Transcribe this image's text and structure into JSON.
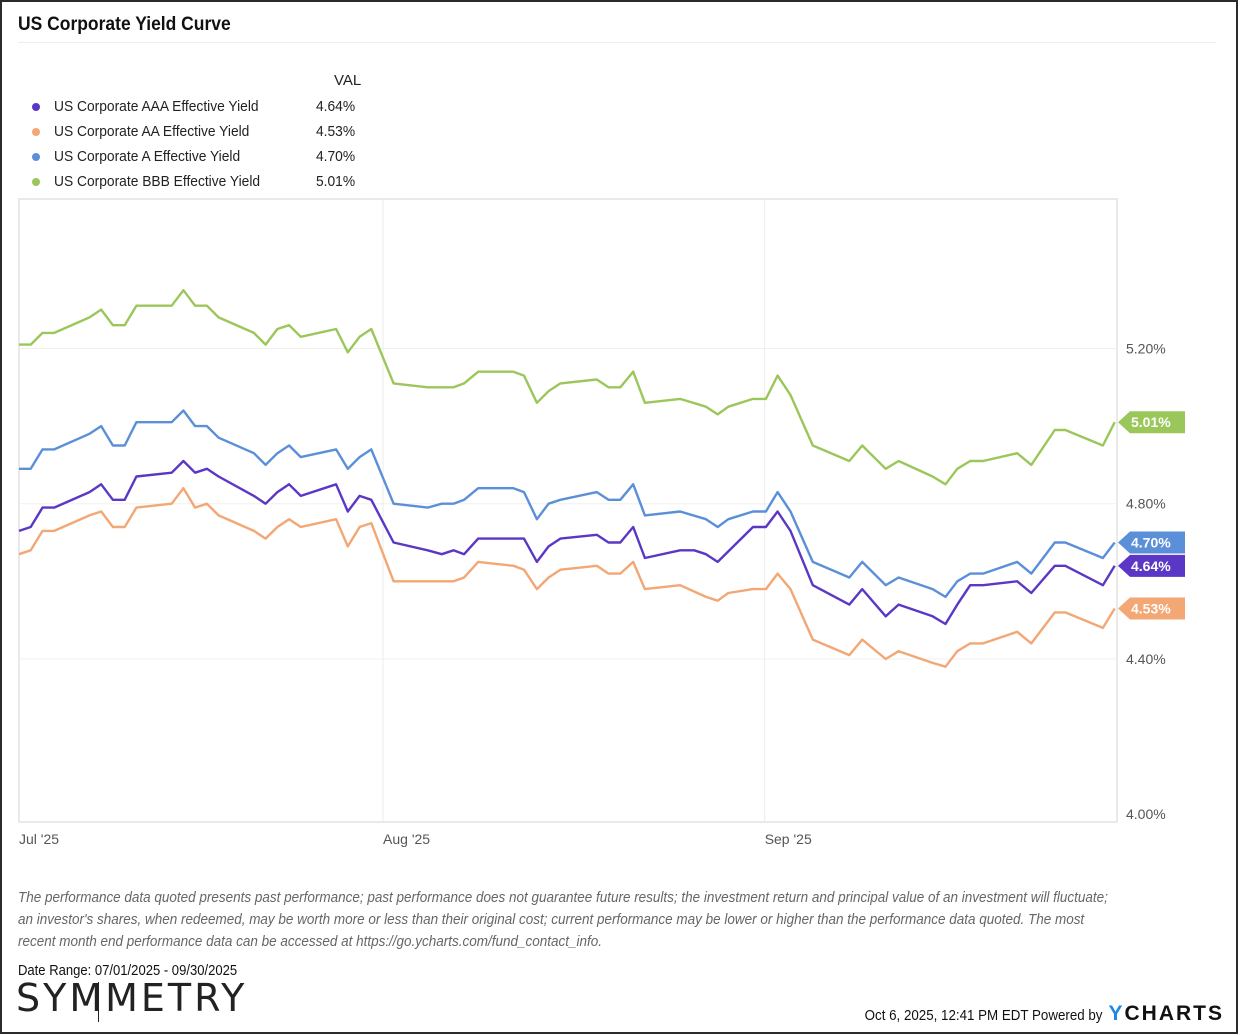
{
  "title": "US Corporate Yield Curve",
  "legend": {
    "value_header": "VAL",
    "items": [
      {
        "label": "US Corporate AAA Effective Yield",
        "value": "4.64%",
        "color": "#5b37c5"
      },
      {
        "label": "US Corporate AA Effective Yield",
        "value": "4.53%",
        "color": "#f2a774"
      },
      {
        "label": "US Corporate A Effective Yield",
        "value": "4.70%",
        "color": "#5b8fd8"
      },
      {
        "label": "US Corporate BBB Effective Yield",
        "value": "5.01%",
        "color": "#9bc75a"
      }
    ]
  },
  "chart_data": {
    "type": "line",
    "title": "US Corporate Yield Curve",
    "xlabel": "",
    "ylabel": "",
    "x_unit": "days since 07/01/2025",
    "xlim": [
      0,
      93.5
    ],
    "ylim": [
      3.98,
      5.585
    ],
    "grid": true,
    "legend_position": "top-left",
    "x_ticks": [
      {
        "label": "Jul '25",
        "x": 0
      },
      {
        "label": "Aug '25",
        "x": 31
      },
      {
        "label": "Sep '25",
        "x": 63.5
      }
    ],
    "y_ticks": [
      {
        "label": "5.20%",
        "y": 5.2
      },
      {
        "label": "4.80%",
        "y": 4.8
      },
      {
        "label": "4.40%",
        "y": 4.4
      },
      {
        "label": "4.00%",
        "y": 4.0
      }
    ],
    "series": [
      {
        "name": "US Corporate BBB Effective Yield",
        "color": "#9bc75a",
        "end_label": "5.01%",
        "points": [
          [
            0,
            5.21
          ],
          [
            1,
            5.21
          ],
          [
            2,
            5.24
          ],
          [
            3,
            5.24
          ],
          [
            6,
            5.28
          ],
          [
            7,
            5.3
          ],
          [
            8,
            5.26
          ],
          [
            9,
            5.26
          ],
          [
            10,
            5.31
          ],
          [
            13,
            5.31
          ],
          [
            14,
            5.35
          ],
          [
            15,
            5.31
          ],
          [
            16,
            5.31
          ],
          [
            17,
            5.28
          ],
          [
            20,
            5.24
          ],
          [
            21,
            5.21
          ],
          [
            22,
            5.25
          ],
          [
            23,
            5.26
          ],
          [
            24,
            5.23
          ],
          [
            27,
            5.25
          ],
          [
            28,
            5.19
          ],
          [
            29,
            5.23
          ],
          [
            30,
            5.25
          ],
          [
            31.9,
            5.11
          ],
          [
            34.8,
            5.1
          ],
          [
            37,
            5.1
          ],
          [
            37.9,
            5.11
          ],
          [
            39.1,
            5.14
          ],
          [
            42.1,
            5.14
          ],
          [
            43,
            5.13
          ],
          [
            44.1,
            5.06
          ],
          [
            45.1,
            5.09
          ],
          [
            46.1,
            5.11
          ],
          [
            49.2,
            5.12
          ],
          [
            50.2,
            5.1
          ],
          [
            51.2,
            5.1
          ],
          [
            52.3,
            5.14
          ],
          [
            53.3,
            5.06
          ],
          [
            56.3,
            5.07
          ],
          [
            58.5,
            5.05
          ],
          [
            59.5,
            5.03
          ],
          [
            60.4,
            5.05
          ],
          [
            62.5,
            5.07
          ],
          [
            63.6,
            5.07
          ],
          [
            64.6,
            5.13
          ],
          [
            65.7,
            5.08
          ],
          [
            67.6,
            4.95
          ],
          [
            70.7,
            4.91
          ],
          [
            71.8,
            4.95
          ],
          [
            73.8,
            4.89
          ],
          [
            74.9,
            4.91
          ],
          [
            77.8,
            4.87
          ],
          [
            78.9,
            4.85
          ],
          [
            79.9,
            4.89
          ],
          [
            81,
            4.91
          ],
          [
            82.1,
            4.91
          ],
          [
            85,
            4.93
          ],
          [
            86.2,
            4.9
          ],
          [
            88.2,
            4.99
          ],
          [
            89.1,
            4.99
          ],
          [
            92.3,
            4.95
          ],
          [
            93.3,
            5.01
          ]
        ]
      },
      {
        "name": "US Corporate A Effective Yield",
        "color": "#5b8fd8",
        "end_label": "4.70%",
        "points": [
          [
            0,
            4.89
          ],
          [
            1,
            4.89
          ],
          [
            2,
            4.94
          ],
          [
            3,
            4.94
          ],
          [
            6,
            4.98
          ],
          [
            7,
            5.0
          ],
          [
            8,
            4.95
          ],
          [
            9,
            4.95
          ],
          [
            10,
            5.01
          ],
          [
            13,
            5.01
          ],
          [
            14,
            5.04
          ],
          [
            15,
            5.0
          ],
          [
            16,
            5.0
          ],
          [
            17,
            4.97
          ],
          [
            20,
            4.93
          ],
          [
            21,
            4.9
          ],
          [
            22,
            4.93
          ],
          [
            23,
            4.95
          ],
          [
            24,
            4.92
          ],
          [
            27,
            4.94
          ],
          [
            28,
            4.89
          ],
          [
            29,
            4.92
          ],
          [
            30,
            4.94
          ],
          [
            31.9,
            4.8
          ],
          [
            34.8,
            4.79
          ],
          [
            36,
            4.8
          ],
          [
            37,
            4.8
          ],
          [
            37.9,
            4.81
          ],
          [
            39.1,
            4.84
          ],
          [
            42.1,
            4.84
          ],
          [
            43,
            4.83
          ],
          [
            44.1,
            4.76
          ],
          [
            45.1,
            4.8
          ],
          [
            46.1,
            4.81
          ],
          [
            49.2,
            4.83
          ],
          [
            50.2,
            4.81
          ],
          [
            51.2,
            4.81
          ],
          [
            52.3,
            4.85
          ],
          [
            53.3,
            4.77
          ],
          [
            56.3,
            4.78
          ],
          [
            58.5,
            4.76
          ],
          [
            59.5,
            4.74
          ],
          [
            60.4,
            4.76
          ],
          [
            62.5,
            4.78
          ],
          [
            63.6,
            4.78
          ],
          [
            64.6,
            4.83
          ],
          [
            65.7,
            4.78
          ],
          [
            67.6,
            4.65
          ],
          [
            70.7,
            4.61
          ],
          [
            71.8,
            4.65
          ],
          [
            73.8,
            4.59
          ],
          [
            74.9,
            4.61
          ],
          [
            77.8,
            4.58
          ],
          [
            78.9,
            4.56
          ],
          [
            79.9,
            4.6
          ],
          [
            81,
            4.62
          ],
          [
            82.1,
            4.62
          ],
          [
            85,
            4.65
          ],
          [
            86.2,
            4.62
          ],
          [
            88.2,
            4.7
          ],
          [
            89.1,
            4.7
          ],
          [
            92.3,
            4.66
          ],
          [
            93.3,
            4.7
          ]
        ]
      },
      {
        "name": "US Corporate AAA Effective Yield",
        "color": "#5b37c5",
        "end_label": "4.64%",
        "points": [
          [
            0,
            4.73
          ],
          [
            1,
            4.74
          ],
          [
            2,
            4.79
          ],
          [
            3,
            4.79
          ],
          [
            6,
            4.83
          ],
          [
            7,
            4.85
          ],
          [
            8,
            4.81
          ],
          [
            9,
            4.81
          ],
          [
            10,
            4.87
          ],
          [
            13,
            4.88
          ],
          [
            14,
            4.91
          ],
          [
            15,
            4.88
          ],
          [
            16,
            4.89
          ],
          [
            17,
            4.87
          ],
          [
            20,
            4.82
          ],
          [
            21,
            4.8
          ],
          [
            22,
            4.83
          ],
          [
            23,
            4.85
          ],
          [
            24,
            4.82
          ],
          [
            27,
            4.85
          ],
          [
            28,
            4.78
          ],
          [
            29,
            4.82
          ],
          [
            30,
            4.81
          ],
          [
            31.9,
            4.7
          ],
          [
            34.8,
            4.68
          ],
          [
            36,
            4.67
          ],
          [
            37,
            4.68
          ],
          [
            37.9,
            4.67
          ],
          [
            39.1,
            4.71
          ],
          [
            43,
            4.71
          ],
          [
            44.1,
            4.65
          ],
          [
            45.1,
            4.69
          ],
          [
            46.1,
            4.71
          ],
          [
            49.2,
            4.72
          ],
          [
            50.2,
            4.7
          ],
          [
            51.2,
            4.7
          ],
          [
            52.3,
            4.74
          ],
          [
            53.3,
            4.66
          ],
          [
            56.3,
            4.68
          ],
          [
            57.5,
            4.68
          ],
          [
            58.5,
            4.67
          ],
          [
            59.5,
            4.65
          ],
          [
            62.5,
            4.74
          ],
          [
            63.6,
            4.74
          ],
          [
            64.6,
            4.78
          ],
          [
            65.7,
            4.73
          ],
          [
            67.6,
            4.59
          ],
          [
            70.7,
            4.54
          ],
          [
            71.8,
            4.58
          ],
          [
            73.8,
            4.51
          ],
          [
            74.9,
            4.54
          ],
          [
            77.8,
            4.51
          ],
          [
            78.9,
            4.49
          ],
          [
            79.9,
            4.54
          ],
          [
            81,
            4.59
          ],
          [
            82.1,
            4.59
          ],
          [
            85,
            4.6
          ],
          [
            86.2,
            4.57
          ],
          [
            88.2,
            4.64
          ],
          [
            89.1,
            4.64
          ],
          [
            92.3,
            4.59
          ],
          [
            93.3,
            4.64
          ]
        ]
      },
      {
        "name": "US Corporate AA Effective Yield",
        "color": "#f2a774",
        "end_label": "4.53%",
        "points": [
          [
            0,
            4.67
          ],
          [
            1,
            4.68
          ],
          [
            2,
            4.73
          ],
          [
            3,
            4.73
          ],
          [
            6,
            4.77
          ],
          [
            7,
            4.78
          ],
          [
            8,
            4.74
          ],
          [
            9,
            4.74
          ],
          [
            10,
            4.79
          ],
          [
            13,
            4.8
          ],
          [
            14,
            4.84
          ],
          [
            15,
            4.79
          ],
          [
            16,
            4.8
          ],
          [
            17,
            4.77
          ],
          [
            20,
            4.73
          ],
          [
            21,
            4.71
          ],
          [
            22,
            4.74
          ],
          [
            23,
            4.76
          ],
          [
            24,
            4.74
          ],
          [
            27,
            4.76
          ],
          [
            28,
            4.69
          ],
          [
            29,
            4.74
          ],
          [
            30,
            4.75
          ],
          [
            31.9,
            4.6
          ],
          [
            37,
            4.6
          ],
          [
            37.9,
            4.61
          ],
          [
            39.1,
            4.65
          ],
          [
            42.1,
            4.64
          ],
          [
            43,
            4.63
          ],
          [
            44.1,
            4.58
          ],
          [
            45.1,
            4.61
          ],
          [
            46.1,
            4.63
          ],
          [
            49.2,
            4.64
          ],
          [
            50.2,
            4.62
          ],
          [
            51.2,
            4.62
          ],
          [
            52.3,
            4.65
          ],
          [
            53.3,
            4.58
          ],
          [
            56.3,
            4.59
          ],
          [
            58.5,
            4.56
          ],
          [
            59.5,
            4.55
          ],
          [
            60.4,
            4.57
          ],
          [
            62.5,
            4.58
          ],
          [
            63.6,
            4.58
          ],
          [
            64.6,
            4.62
          ],
          [
            65.7,
            4.58
          ],
          [
            67.6,
            4.45
          ],
          [
            70.7,
            4.41
          ],
          [
            71.8,
            4.45
          ],
          [
            73.8,
            4.4
          ],
          [
            74.9,
            4.42
          ],
          [
            77.8,
            4.39
          ],
          [
            78.9,
            4.38
          ],
          [
            79.9,
            4.42
          ],
          [
            81,
            4.44
          ],
          [
            82.1,
            4.44
          ],
          [
            85,
            4.47
          ],
          [
            86.2,
            4.44
          ],
          [
            88.2,
            4.52
          ],
          [
            89.1,
            4.52
          ],
          [
            92.3,
            4.48
          ],
          [
            93.3,
            4.53
          ]
        ]
      }
    ]
  },
  "disclaimer": "The performance data quoted presents past performance; past performance does not guarantee future results; the investment return and principal value of an investment will fluctuate; an investor's shares, when redeemed, may be worth more or less than their original cost; current performance may be lower or higher than the performance data quoted. The most recent month end performance data can be accessed at https://go.ycharts.com/fund_contact_info.",
  "date_range": "Date Range: 07/01/2025 - 09/30/2025",
  "logo_text": "SYMMETRY",
  "timestamp": "Oct 6, 2025, 12:41 PM EDT Powered by",
  "brand": {
    "y": "Y",
    "rest": "CHARTS",
    "accent": "#1e88e5"
  }
}
